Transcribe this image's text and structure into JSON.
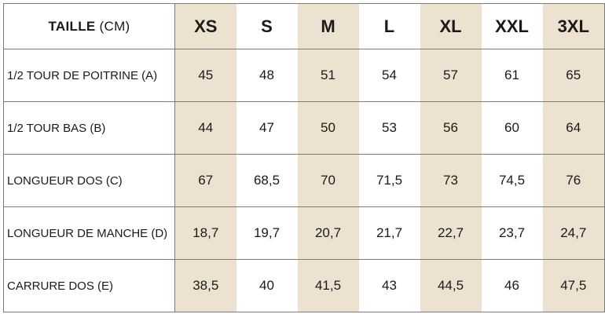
{
  "table": {
    "header_label": "TAILLE",
    "header_unit": "(CM)",
    "sizes": [
      "XS",
      "S",
      "M",
      "L",
      "XL",
      "XXL",
      "3XL"
    ],
    "rows": [
      {
        "label": "1/2 TOUR DE POITRINE (A)",
        "values": [
          "45",
          "48",
          "51",
          "54",
          "57",
          "61",
          "65"
        ]
      },
      {
        "label": "1/2 TOUR BAS (B)",
        "values": [
          "44",
          "47",
          "50",
          "53",
          "56",
          "60",
          "64"
        ]
      },
      {
        "label": "LONGUEUR DOS (C)",
        "values": [
          "67",
          "68,5",
          "70",
          "71,5",
          "73",
          "74,5",
          "76"
        ]
      },
      {
        "label": "LONGUEUR DE MANCHE (D)",
        "values": [
          "18,7",
          "19,7",
          "20,7",
          "21,7",
          "22,7",
          "23,7",
          "24,7"
        ]
      },
      {
        "label": "CARRURE DOS (E)",
        "values": [
          "38,5",
          "40",
          "41,5",
          "43",
          "44,5",
          "46",
          "47,5"
        ]
      }
    ],
    "shade_color": "#ede2d0"
  }
}
